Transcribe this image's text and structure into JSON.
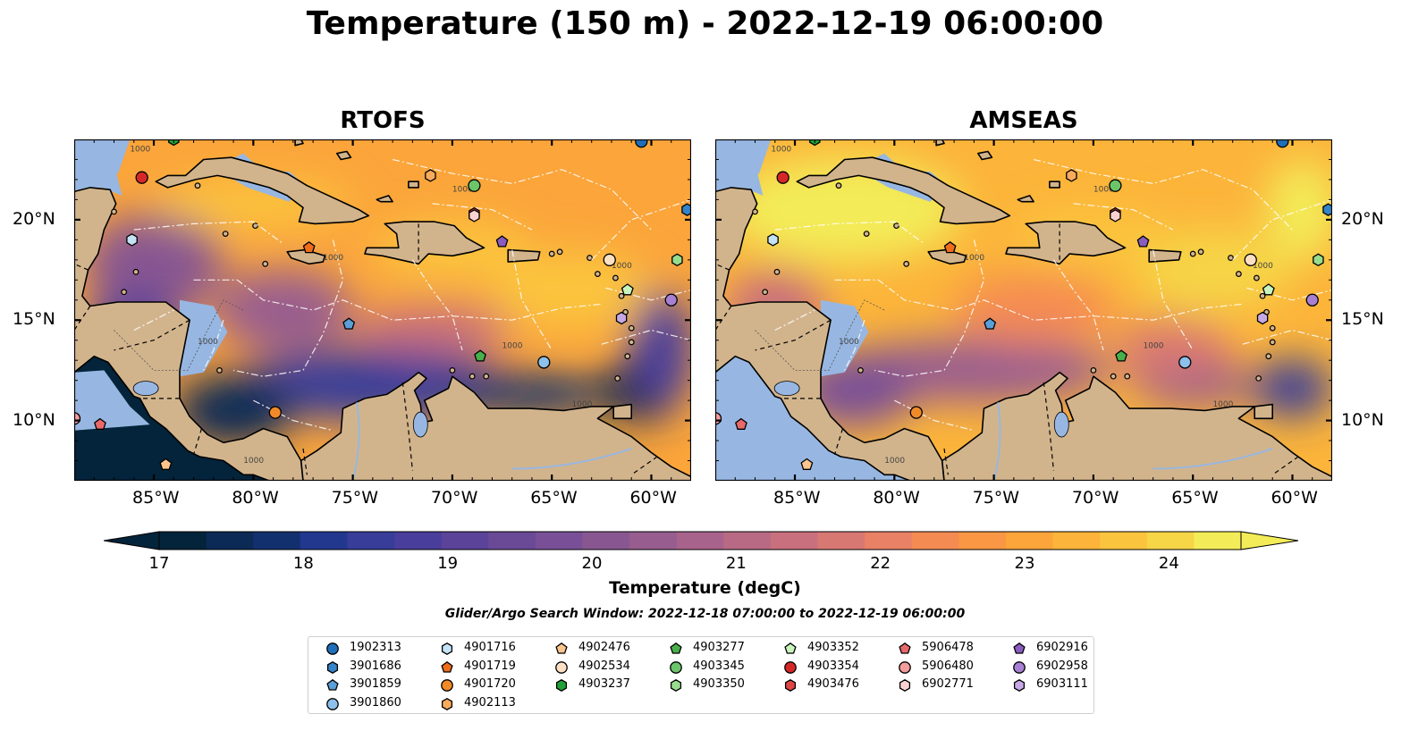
{
  "title": "Temperature (150 m) - 2022-12-19 06:00:00",
  "maps": [
    {
      "title": "RTOFS",
      "model": "rtofs"
    },
    {
      "title": "AMSEAS",
      "model": "amseas"
    }
  ],
  "lon_ticks": [
    "85°W",
    "80°W",
    "75°W",
    "70°W",
    "65°W",
    "60°W"
  ],
  "lat_ticks": [
    "20°N",
    "15°N",
    "10°N"
  ],
  "map_extent": {
    "lon_min": -89,
    "lon_max": -58,
    "lat_min": 7,
    "lat_max": 24
  },
  "contour_label": "1000",
  "colorbar": {
    "label": "Temperature (degC)",
    "min": 17,
    "max": 24,
    "ticks": [
      "17",
      "18",
      "19",
      "20",
      "21",
      "22",
      "23",
      "24"
    ],
    "extend": "both",
    "colors": [
      "#03243a",
      "#0b2a55",
      "#13306e",
      "#22388f",
      "#373d99",
      "#493e9b",
      "#5a4399",
      "#6a4a97",
      "#795097",
      "#885791",
      "#985d8f",
      "#a8638c",
      "#b86a85",
      "#c8707d",
      "#d87873",
      "#e88166",
      "#f48b53",
      "#f99744",
      "#fba53b",
      "#fcb43a",
      "#fbc43e",
      "#f6d547",
      "#f3ec58"
    ]
  },
  "search_window": "Glider/Argo Search Window: 2022-12-18 07:00:00 to 2022-12-19 06:00:00",
  "legend": {
    "columns": [
      [
        {
          "id": "1902313",
          "marker": "circle",
          "color": "#1f6fb8"
        },
        {
          "id": "3901686",
          "marker": "hexagon",
          "color": "#3583c8"
        },
        {
          "id": "3901859",
          "marker": "pentagon",
          "color": "#5a9fd8"
        },
        {
          "id": "3901860",
          "marker": "circle",
          "color": "#8dc0ea"
        }
      ],
      [
        {
          "id": "4901716",
          "marker": "hexagon",
          "color": "#c5e2f6"
        },
        {
          "id": "4901719",
          "marker": "pentagon",
          "color": "#ee6c1a"
        },
        {
          "id": "4901720",
          "marker": "circle",
          "color": "#f08a28"
        },
        {
          "id": "4902113",
          "marker": "hexagon",
          "color": "#f8ab5c"
        }
      ],
      [
        {
          "id": "4902476",
          "marker": "pentagon",
          "color": "#fbc58e"
        },
        {
          "id": "4902534",
          "marker": "circle",
          "color": "#fde0c3"
        },
        {
          "id": "4903237",
          "marker": "hexagon",
          "color": "#21a037"
        }
      ],
      [
        {
          "id": "4903277",
          "marker": "pentagon",
          "color": "#47b04a"
        },
        {
          "id": "4903345",
          "marker": "circle",
          "color": "#6cc56a"
        },
        {
          "id": "4903350",
          "marker": "hexagon",
          "color": "#98dc8e"
        }
      ],
      [
        {
          "id": "4903352",
          "marker": "pentagon",
          "color": "#c8f5bd"
        },
        {
          "id": "4903354",
          "marker": "circle",
          "color": "#d62728"
        },
        {
          "id": "4903476",
          "marker": "hexagon",
          "color": "#e04546"
        }
      ],
      [
        {
          "id": "5906478",
          "marker": "pentagon",
          "color": "#e8696a"
        },
        {
          "id": "5906480",
          "marker": "circle",
          "color": "#f29c9c"
        },
        {
          "id": "6902771",
          "marker": "hexagon",
          "color": "#fbd2d2"
        }
      ],
      [
        {
          "id": "6902916",
          "marker": "pentagon",
          "color": "#8a5cc0"
        },
        {
          "id": "6902958",
          "marker": "circle",
          "color": "#a880d3"
        },
        {
          "id": "6903111",
          "marker": "hexagon",
          "color": "#c6a8e6"
        }
      ]
    ]
  },
  "floats": [
    {
      "id": "1902313",
      "lon": -60.5,
      "lat": 23.9
    },
    {
      "id": "3901686",
      "lon": -58.2,
      "lat": 20.5
    },
    {
      "id": "3901859",
      "lon": -75.2,
      "lat": 14.8
    },
    {
      "id": "3901860",
      "lon": -65.4,
      "lat": 12.9
    },
    {
      "id": "4901716",
      "lon": -86.1,
      "lat": 19.0
    },
    {
      "id": "4901719",
      "lon": -77.2,
      "lat": 18.6
    },
    {
      "id": "4901720",
      "lon": -78.9,
      "lat": 10.4
    },
    {
      "id": "4902113",
      "lon": -71.1,
      "lat": 22.2
    },
    {
      "id": "4902476",
      "lon": -84.4,
      "lat": 7.8
    },
    {
      "id": "4902534",
      "lon": -62.1,
      "lat": 18.0
    },
    {
      "id": "4903237",
      "lon": -84.0,
      "lat": 24.0
    },
    {
      "id": "4903277",
      "lon": -68.6,
      "lat": 13.2
    },
    {
      "id": "4903345",
      "lon": -68.9,
      "lat": 21.7
    },
    {
      "id": "4903350",
      "lon": -58.7,
      "lat": 18.0
    },
    {
      "id": "4903352",
      "lon": -61.2,
      "lat": 16.5
    },
    {
      "id": "4903354",
      "lon": -85.6,
      "lat": 22.1
    },
    {
      "id": "4903476",
      "lon": -68.9,
      "lat": 20.3
    },
    {
      "id": "5906478",
      "lon": -87.7,
      "lat": 9.8
    },
    {
      "id": "5906480",
      "lon": -89.0,
      "lat": 10.1
    },
    {
      "id": "6902771",
      "lon": -68.9,
      "lat": 20.2
    },
    {
      "id": "6902916",
      "lon": -67.5,
      "lat": 18.9
    },
    {
      "id": "6902958",
      "lon": -59.0,
      "lat": 16.0
    },
    {
      "id": "6903111",
      "lon": -61.5,
      "lat": 15.1
    }
  ]
}
